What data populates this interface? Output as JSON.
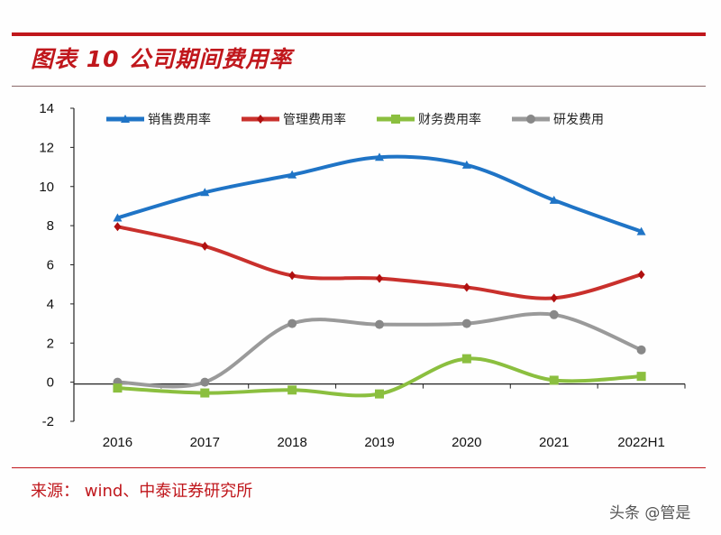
{
  "title": "图表 10 公司期间费用率",
  "source": "来源：  wind、中泰证券研究所",
  "watermark": "头条 @管是",
  "chart_data": {
    "type": "line",
    "title": "图表 10 公司期间费用率",
    "categories": [
      "2016",
      "2017",
      "2018",
      "2019",
      "2020",
      "2021",
      "2022H1"
    ],
    "ylim": [
      -2,
      14
    ],
    "yticks": [
      -2,
      0,
      2,
      4,
      6,
      8,
      10,
      12,
      14
    ],
    "grid": false,
    "legend": "top",
    "smooth": true,
    "series": [
      {
        "name": "销售费用率",
        "color": "#1f74c6",
        "marker": "triangle",
        "values": [
          8.4,
          9.7,
          10.6,
          11.5,
          11.1,
          9.3,
          7.7
        ]
      },
      {
        "name": "管理费用率",
        "color": "#c9302c",
        "marker": "diamond",
        "values": [
          7.95,
          6.95,
          5.45,
          5.3,
          4.85,
          4.3,
          5.5
        ]
      },
      {
        "name": "财务费用率",
        "color": "#8bbf3f",
        "marker": "square",
        "values": [
          -0.3,
          -0.55,
          -0.4,
          -0.6,
          1.2,
          0.1,
          0.3
        ]
      },
      {
        "name": "研发费用",
        "color": "#9a9a9a",
        "marker": "circle",
        "values": [
          0.0,
          0.0,
          3.0,
          2.95,
          3.0,
          3.45,
          1.65
        ]
      }
    ]
  }
}
